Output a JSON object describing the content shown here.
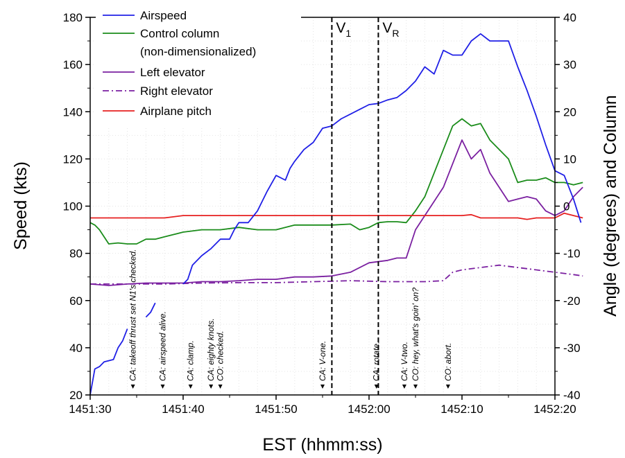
{
  "chart_data": {
    "type": "line",
    "title": "",
    "xlabel": "EST (hhmm:ss)",
    "ylabel": "Speed (kts)",
    "y2label": "Angle (degrees) and Column",
    "x_range": [
      "1451:30",
      "1452:20"
    ],
    "x_range_seconds": [
      0,
      50
    ],
    "ylim": [
      20,
      180
    ],
    "y2lim": [
      -40,
      40
    ],
    "x_ticks": [
      "1451:30",
      "1451:40",
      "1451:50",
      "1452:00",
      "1452:10",
      "1452:20"
    ],
    "y_ticks": [
      20,
      40,
      60,
      80,
      100,
      120,
      140,
      160,
      180
    ],
    "y2_ticks": [
      -40,
      -30,
      -20,
      -10,
      0,
      10,
      20,
      30,
      40
    ],
    "grid": true,
    "legend_position": "top-left",
    "x_unit": "seconds after 1451:30",
    "series": [
      {
        "name": "Airspeed",
        "axis": "left",
        "color": "#1f1fe6",
        "style": "solid",
        "points": [
          [
            0,
            20
          ],
          [
            0.5,
            31
          ],
          [
            1,
            32
          ],
          [
            1.5,
            34
          ],
          [
            2.5,
            35
          ],
          [
            3,
            40
          ],
          [
            3.5,
            43
          ],
          [
            4,
            48
          ]
        ],
        "segments": [
          [
            [
              0,
              20
            ],
            [
              0.5,
              31
            ],
            [
              1,
              32
            ],
            [
              1.5,
              34
            ],
            [
              2.5,
              35
            ],
            [
              3,
              40
            ],
            [
              3.5,
              43
            ],
            [
              4,
              48
            ]
          ],
          [
            [
              6,
              53
            ],
            [
              6.5,
              55
            ],
            [
              7,
              59
            ]
          ],
          [
            [
              10,
              67
            ],
            [
              10.5,
              69
            ],
            [
              11,
              75
            ],
            [
              12,
              79
            ],
            [
              13,
              82
            ],
            [
              14,
              86
            ],
            [
              15,
              86
            ],
            [
              15.5,
              90
            ],
            [
              16,
              93
            ],
            [
              17,
              93
            ],
            [
              18,
              98
            ],
            [
              19,
              106
            ],
            [
              20,
              113
            ],
            [
              21,
              111
            ],
            [
              21.5,
              116
            ],
            [
              22,
              119
            ],
            [
              23,
              124
            ],
            [
              24,
              127
            ],
            [
              25,
              133
            ],
            [
              26,
              134
            ],
            [
              27,
              137
            ],
            [
              28,
              139
            ],
            [
              29,
              141
            ],
            [
              30,
              143
            ],
            [
              31,
              143.5
            ],
            [
              32,
              145
            ],
            [
              33,
              146
            ],
            [
              34,
              149
            ],
            [
              35,
              153
            ],
            [
              36,
              159
            ],
            [
              37,
              156
            ],
            [
              38,
              166
            ],
            [
              39,
              164
            ],
            [
              40,
              164
            ],
            [
              41,
              170
            ],
            [
              42,
              173
            ],
            [
              43,
              170
            ],
            [
              44,
              170
            ],
            [
              45,
              170
            ],
            [
              46,
              159
            ],
            [
              47,
              149
            ],
            [
              48,
              138
            ],
            [
              49,
              126
            ],
            [
              50,
              115
            ],
            [
              51,
              113
            ],
            [
              52,
              103
            ],
            [
              52.8,
              93
            ]
          ]
        ]
      },
      {
        "name": "Control column (non-dimensionalized)",
        "axis": "right",
        "color": "#1a8c1a",
        "style": "solid",
        "points": [
          [
            0,
            -3.5
          ],
          [
            0.5,
            -4
          ],
          [
            1,
            -5
          ],
          [
            2,
            -8
          ],
          [
            3,
            -7.8
          ],
          [
            4,
            -8
          ],
          [
            5,
            -8
          ],
          [
            6,
            -7
          ],
          [
            7,
            -7
          ],
          [
            8,
            -6.5
          ],
          [
            9,
            -6
          ],
          [
            10,
            -5.5
          ],
          [
            12,
            -5
          ],
          [
            14,
            -5
          ],
          [
            16,
            -4.5
          ],
          [
            18,
            -5
          ],
          [
            20,
            -5
          ],
          [
            22,
            -4
          ],
          [
            24,
            -4
          ],
          [
            26,
            -4
          ],
          [
            28,
            -3.8
          ],
          [
            29,
            -5
          ],
          [
            30,
            -4.5
          ],
          [
            31,
            -3.5
          ],
          [
            32,
            -3.3
          ],
          [
            33,
            -3.3
          ],
          [
            34,
            -3.5
          ],
          [
            35,
            -1
          ],
          [
            36,
            2
          ],
          [
            37,
            7
          ],
          [
            38,
            12
          ],
          [
            39,
            17
          ],
          [
            40,
            18.5
          ],
          [
            41,
            17
          ],
          [
            42,
            17.5
          ],
          [
            43,
            14
          ],
          [
            44,
            12
          ],
          [
            45,
            10
          ],
          [
            46,
            5
          ],
          [
            47,
            5.5
          ],
          [
            48,
            5.5
          ],
          [
            49,
            6
          ],
          [
            50,
            5
          ],
          [
            51,
            5
          ],
          [
            52,
            4.5
          ],
          [
            53,
            5
          ]
        ]
      },
      {
        "name": "Left elevator",
        "axis": "right",
        "color": "#7a1fa0",
        "style": "solid",
        "points": [
          [
            0,
            -16.5
          ],
          [
            2,
            -16.8
          ],
          [
            4,
            -16.5
          ],
          [
            6,
            -16.3
          ],
          [
            8,
            -16.3
          ],
          [
            10,
            -16.3
          ],
          [
            12,
            -16
          ],
          [
            14,
            -16
          ],
          [
            16,
            -15.8
          ],
          [
            18,
            -15.5
          ],
          [
            20,
            -15.5
          ],
          [
            22,
            -15
          ],
          [
            24,
            -15
          ],
          [
            26,
            -14.8
          ],
          [
            28,
            -14
          ],
          [
            30,
            -12
          ],
          [
            32,
            -11.5
          ],
          [
            33,
            -11
          ],
          [
            34,
            -11
          ],
          [
            35,
            -5
          ],
          [
            36,
            -2
          ],
          [
            37,
            1
          ],
          [
            38,
            4
          ],
          [
            39,
            9
          ],
          [
            40,
            14
          ],
          [
            41,
            10
          ],
          [
            42,
            12
          ],
          [
            43,
            7
          ],
          [
            44,
            4
          ],
          [
            45,
            1
          ],
          [
            46,
            1.5
          ],
          [
            47,
            2
          ],
          [
            48,
            1.5
          ],
          [
            49,
            -1
          ],
          [
            50,
            -2
          ],
          [
            51,
            -1
          ],
          [
            52,
            2
          ],
          [
            53,
            4
          ]
        ]
      },
      {
        "name": "Right elevator",
        "axis": "right",
        "color": "#7a1fa0",
        "style": "dashdot",
        "points": [
          [
            0,
            -16.5
          ],
          [
            4,
            -16.5
          ],
          [
            8,
            -16.5
          ],
          [
            12,
            -16.3
          ],
          [
            16,
            -16.2
          ],
          [
            20,
            -16.2
          ],
          [
            24,
            -16
          ],
          [
            28,
            -15.8
          ],
          [
            32,
            -16
          ],
          [
            36,
            -16
          ],
          [
            38,
            -15.8
          ],
          [
            39,
            -14
          ],
          [
            40,
            -13.5
          ],
          [
            42,
            -13
          ],
          [
            44,
            -12.5
          ],
          [
            46,
            -13
          ],
          [
            48,
            -13.5
          ],
          [
            50,
            -14
          ],
          [
            52,
            -14.5
          ],
          [
            53,
            -14.8
          ]
        ]
      },
      {
        "name": "Airplane pitch",
        "axis": "right",
        "color": "#e61f1f",
        "style": "solid",
        "points": [
          [
            0,
            -2.5
          ],
          [
            4,
            -2.5
          ],
          [
            7,
            -2.5
          ],
          [
            8,
            -2.5
          ],
          [
            10,
            -2
          ],
          [
            12,
            -2
          ],
          [
            14,
            -2
          ],
          [
            16,
            -2
          ],
          [
            18,
            -2
          ],
          [
            20,
            -2
          ],
          [
            22,
            -2
          ],
          [
            24,
            -2
          ],
          [
            26,
            -2
          ],
          [
            28,
            -2
          ],
          [
            30,
            -2
          ],
          [
            32,
            -2
          ],
          [
            34,
            -2
          ],
          [
            36,
            -2
          ],
          [
            38,
            -2
          ],
          [
            40,
            -2
          ],
          [
            41,
            -1.8
          ],
          [
            42,
            -2.5
          ],
          [
            44,
            -2.5
          ],
          [
            46,
            -2.5
          ],
          [
            47,
            -2.8
          ],
          [
            48,
            -2.5
          ],
          [
            50,
            -2.5
          ],
          [
            51,
            -1.5
          ],
          [
            52,
            -2
          ],
          [
            53,
            -2.5
          ]
        ]
      }
    ],
    "vlines": [
      {
        "label": "V",
        "sub": "1",
        "x": 26
      },
      {
        "label": "V",
        "sub": "R",
        "x": 31
      }
    ],
    "annotations": [
      {
        "text": "CA: takeoff thrust set N1's checked.",
        "x": 4.6
      },
      {
        "text": "CA: airspeed alive.",
        "x": 7.8
      },
      {
        "text": "CA: clamp.",
        "x": 10.8
      },
      {
        "text": "CA: eighty knots.",
        "x": 13.0
      },
      {
        "text": "CO: checked.",
        "x": 14.0
      },
      {
        "text": "CA: V-one.",
        "x": 25.0
      },
      {
        "text": "CA: rotate.",
        "x": 30.8
      },
      {
        "text": "CA: V-two.",
        "x": 33.8
      },
      {
        "text": "CO: hey, what's goin' on?",
        "x": 35.0
      },
      {
        "text": "CO: abort.",
        "x": 38.5
      }
    ]
  }
}
